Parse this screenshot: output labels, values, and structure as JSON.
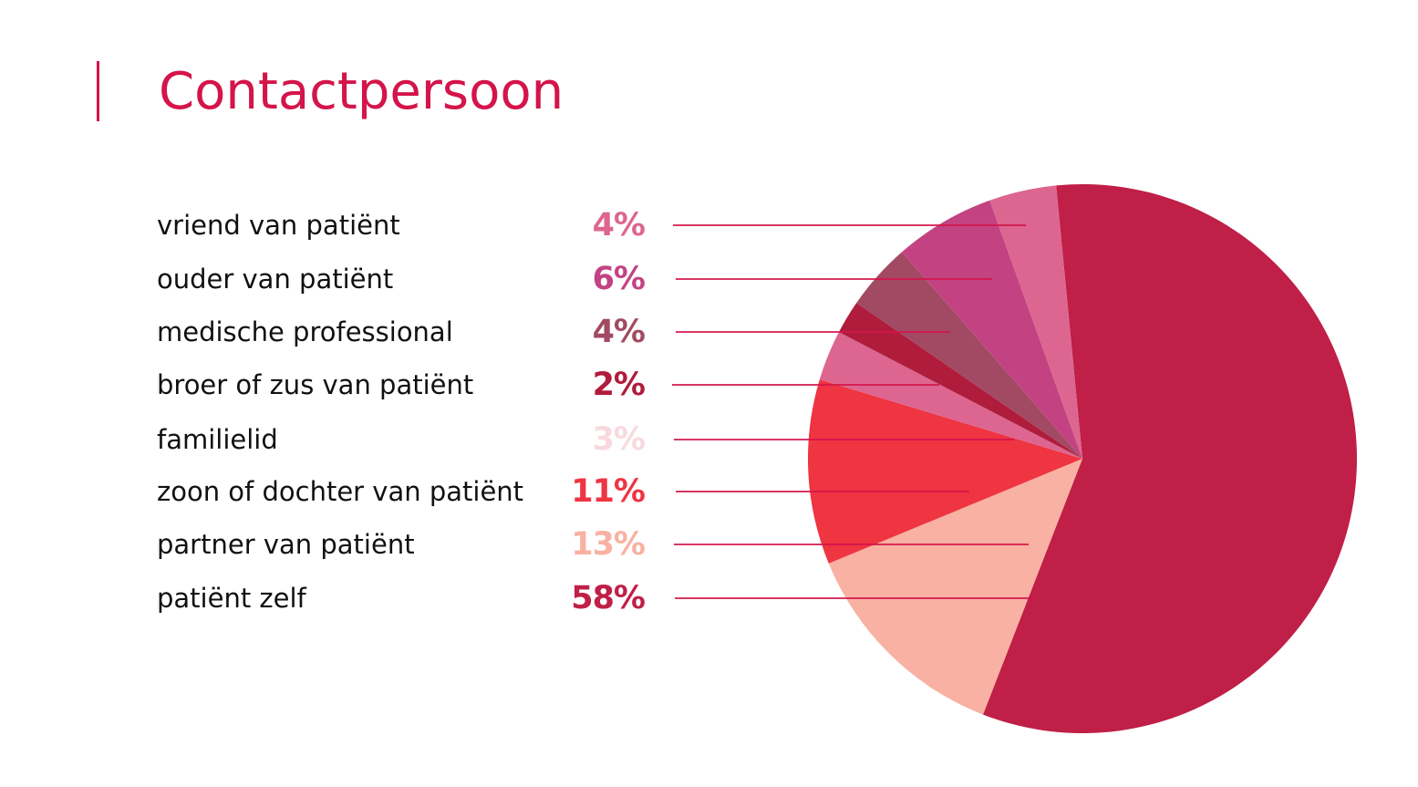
{
  "title": "Contactpersoon",
  "colors": {
    "accent": "#d4144a",
    "leader": "#d4144a"
  },
  "legend": [
    {
      "label": "vriend van patiënt",
      "value": "4%",
      "color": "#dc6690"
    },
    {
      "label": "ouder van patiënt",
      "value": "6%",
      "color": "#c34382"
    },
    {
      "label": "medische professional",
      "value": "4%",
      "color": "#a24a63"
    },
    {
      "label": "broer of zus van patiënt",
      "value": "2%",
      "color": "#b01c3c"
    },
    {
      "label": "familielid",
      "value": "3%",
      "color": "#f8d9df"
    },
    {
      "label": "zoon of dochter van patiënt",
      "value": "11%",
      "color": "#ef3442"
    },
    {
      "label": "partner van patiënt",
      "value": "13%",
      "color": "#f8b1a2"
    },
    {
      "label": "patiënt zelf",
      "value": "58%",
      "color": "#c01f47"
    }
  ],
  "chart_data": {
    "type": "pie",
    "title": "Contactpersoon",
    "categories": [
      "patiënt zelf",
      "partner van patiënt",
      "zoon of dochter van patiënt",
      "familielid",
      "broer of zus van patiënt",
      "medische professional",
      "ouder van patiënt",
      "vriend van patiënt"
    ],
    "values": [
      58,
      13,
      11,
      3,
      2,
      4,
      6,
      4
    ],
    "unit": "%",
    "slice_colors": [
      "#c01f47",
      "#f8b1a2",
      "#ef3442",
      "#dc6690",
      "#b01c3c",
      "#a24a63",
      "#c34382",
      "#dc6690"
    ],
    "legend_position": "left",
    "legend_order": [
      "vriend van patiënt",
      "ouder van patiënt",
      "medische professional",
      "broer of zus van patiënt",
      "familielid",
      "zoon of dochter van patiënt",
      "partner van patiënt",
      "patiënt zelf"
    ]
  }
}
